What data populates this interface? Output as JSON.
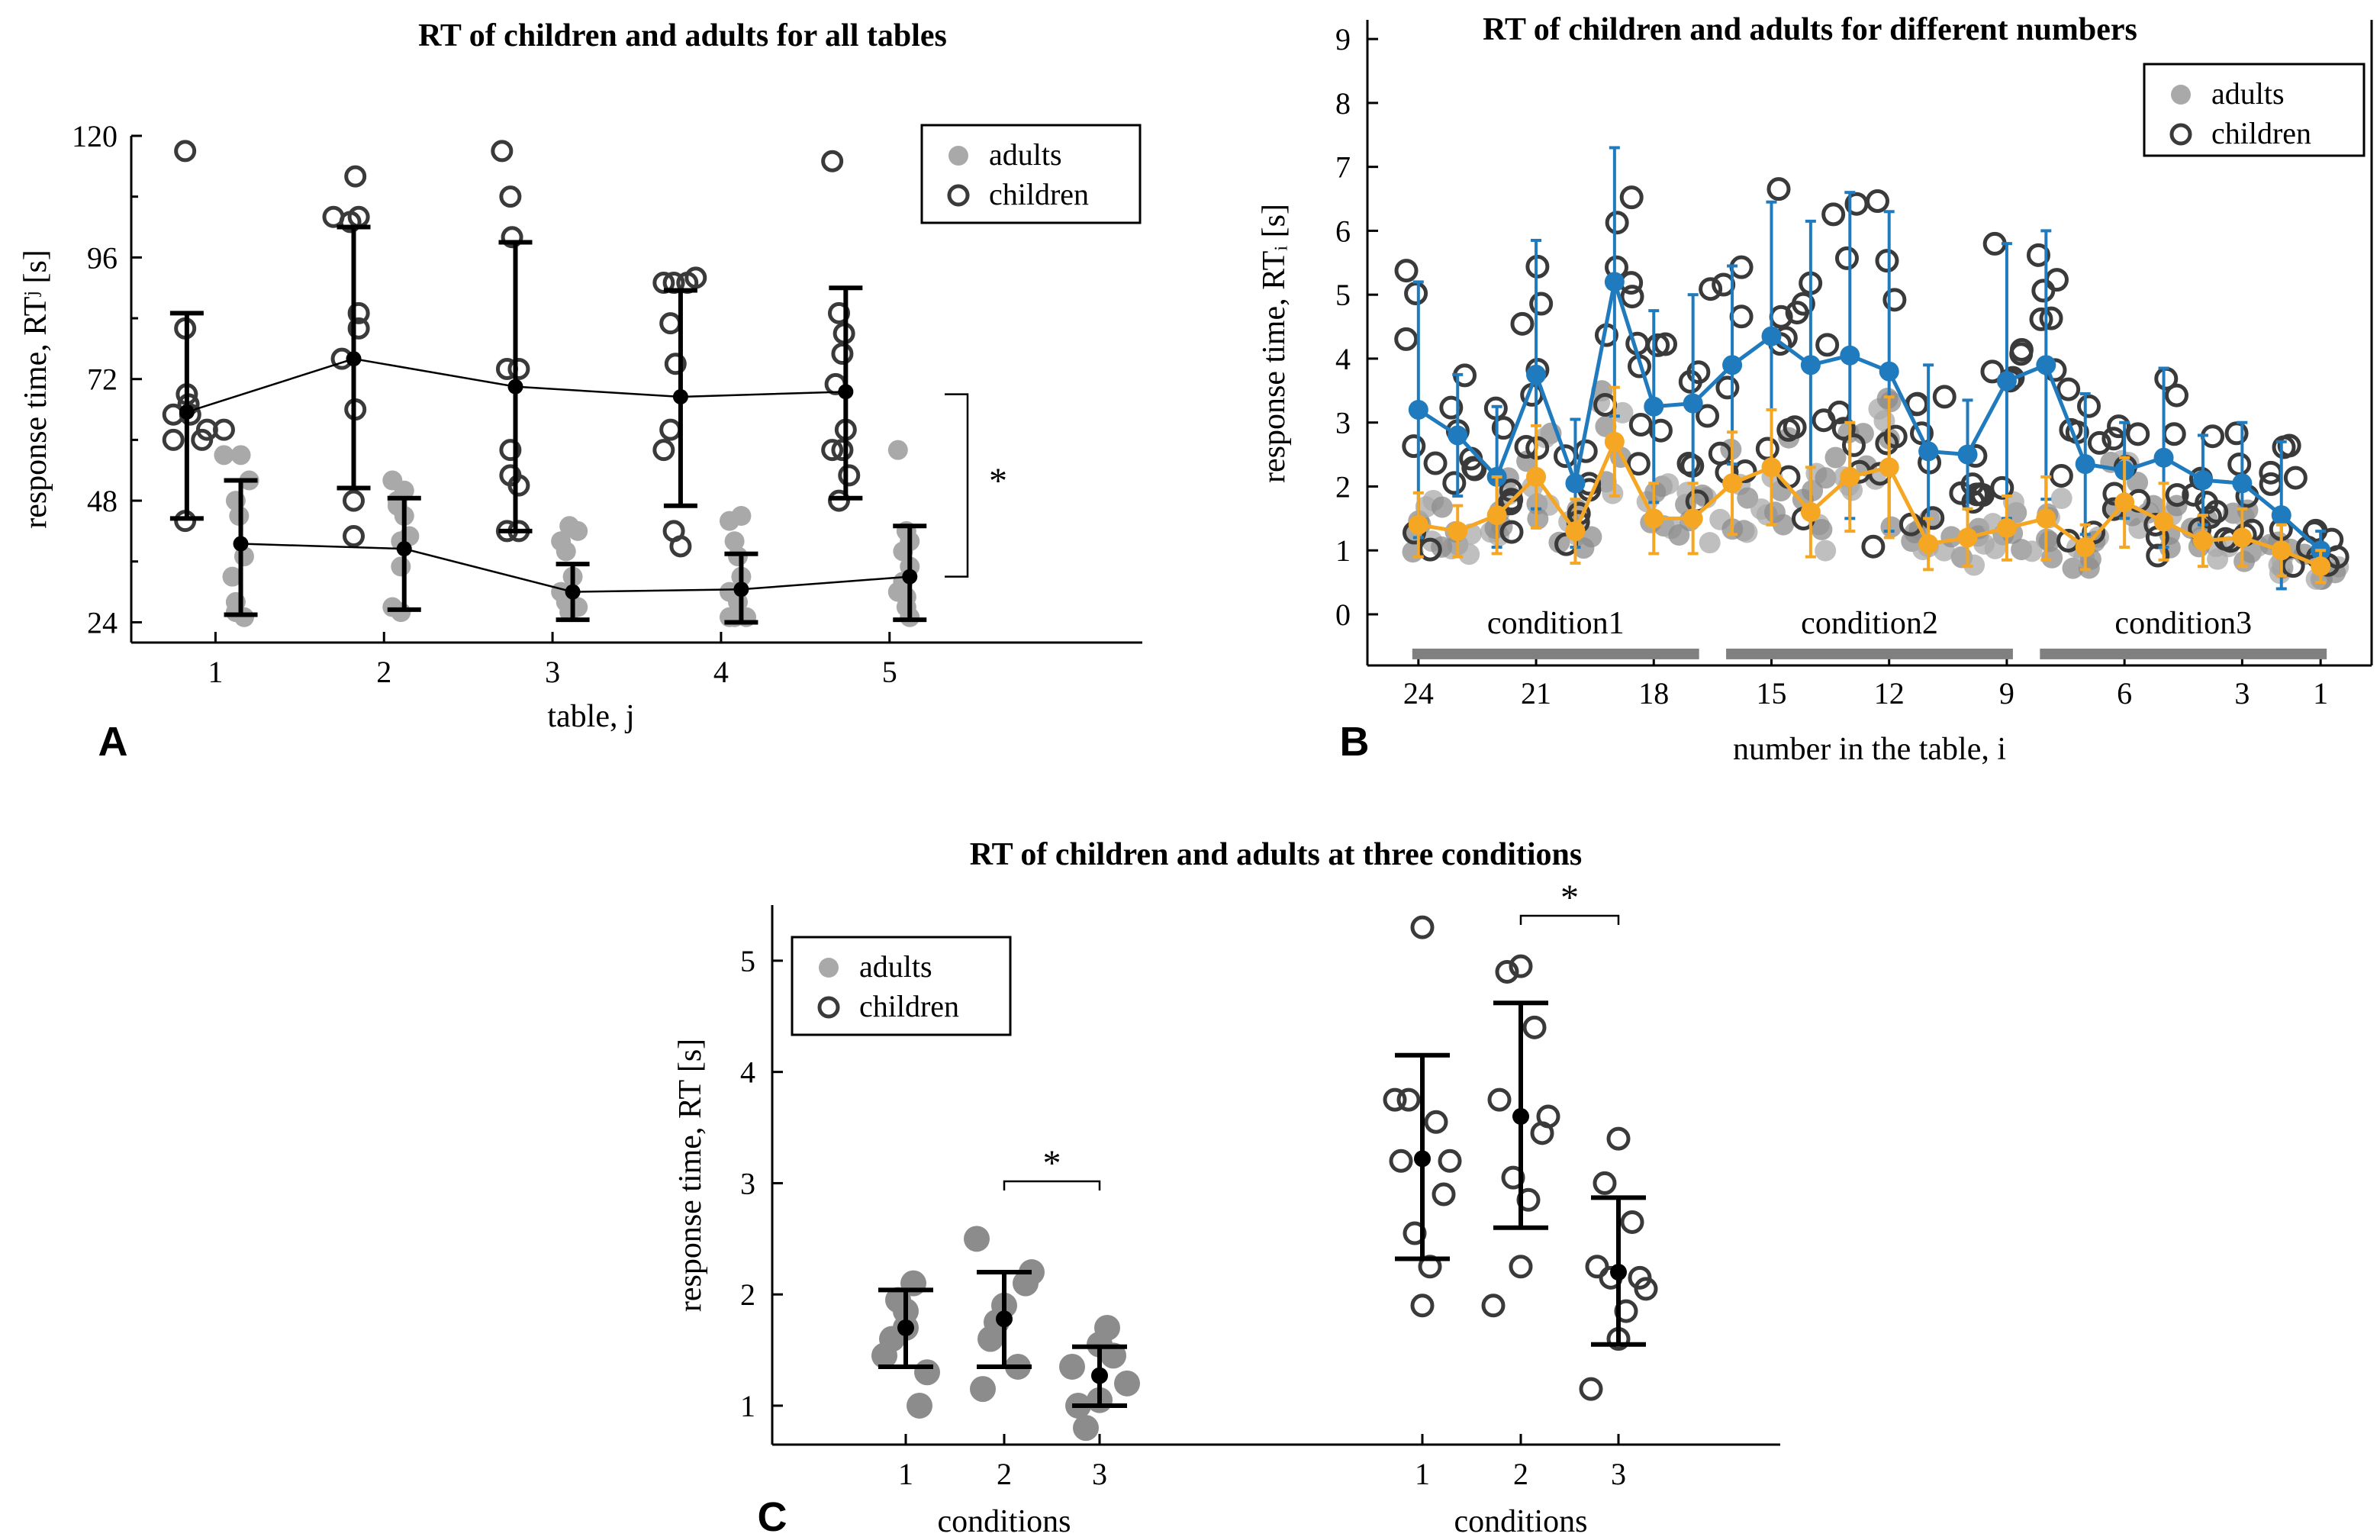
{
  "colors": {
    "adult": "#a9a9a9",
    "adult_dark": "#8c8c8c",
    "child": "#3a3a3a",
    "mean": "#000000",
    "blue": "#1f7bbd",
    "orange": "#f5a623",
    "condition_bar": "#808080"
  },
  "chart_data": [
    {
      "id": "A",
      "panel_label": "A",
      "type": "scatter",
      "title": "RT of children and adults for all tables",
      "xlabel": "table, j",
      "ylabel": "response time, RTʲ [s]",
      "xlim": [
        0.5,
        6.5
      ],
      "ylim": [
        20,
        120
      ],
      "x_ticks": [
        1,
        2,
        3,
        4,
        5
      ],
      "y_ticks": [
        24,
        48,
        72,
        96,
        120
      ],
      "legend": {
        "position": "top-right",
        "entries": [
          "adults",
          "children"
        ]
      },
      "significance": {
        "label": "*",
        "between": "children vs adults"
      },
      "series": [
        {
          "name": "children",
          "marker": "open-circle",
          "points": [
            [
              0.82,
              117
            ],
            [
              0.82,
              44
            ],
            [
              0.75,
              65
            ],
            [
              0.75,
              60
            ],
            [
              0.83,
              69
            ],
            [
              0.92,
              60
            ],
            [
              0.95,
              62
            ],
            [
              0.85,
              65
            ],
            [
              0.84,
              67
            ],
            [
              0.82,
              82
            ],
            [
              1.05,
              62
            ],
            [
              1.7,
              104
            ],
            [
              1.8,
              103
            ],
            [
              1.83,
              112
            ],
            [
              1.85,
              104
            ],
            [
              1.85,
              85
            ],
            [
              1.85,
              82
            ],
            [
              1.83,
              66
            ],
            [
              1.82,
              48
            ],
            [
              1.82,
              41
            ],
            [
              1.75,
              76
            ],
            [
              2.7,
              117
            ],
            [
              2.75,
              108
            ],
            [
              2.76,
              100
            ],
            [
              2.73,
              74
            ],
            [
              2.8,
              74
            ],
            [
              2.75,
              58
            ],
            [
              2.8,
              51
            ],
            [
              2.75,
              53
            ],
            [
              2.73,
              42
            ],
            [
              2.8,
              42
            ],
            [
              3.66,
              91
            ],
            [
              3.72,
              91
            ],
            [
              3.8,
              91
            ],
            [
              3.85,
              92
            ],
            [
              3.7,
              83
            ],
            [
              3.73,
              75
            ],
            [
              3.7,
              62
            ],
            [
              3.66,
              58
            ],
            [
              3.72,
              42
            ],
            [
              3.76,
              39
            ],
            [
              4.66,
              115
            ],
            [
              4.7,
              85
            ],
            [
              4.73,
              81
            ],
            [
              4.72,
              77
            ],
            [
              4.68,
              71
            ],
            [
              4.74,
              62
            ],
            [
              4.66,
              58
            ],
            [
              4.72,
              58
            ],
            [
              4.76,
              53
            ],
            [
              4.7,
              48
            ]
          ],
          "means": [
            65.5,
            76,
            70.5,
            68.5,
            69.5
          ],
          "mean_x": [
            0.83,
            1.82,
            2.78,
            3.76,
            4.74
          ],
          "sd_low": [
            44.5,
            50.5,
            42,
            47,
            48.5
          ],
          "sd_high": [
            85,
            102,
            99,
            89.5,
            90
          ]
        },
        {
          "name": "adults",
          "marker": "filled-circle",
          "points": [
            [
              1.05,
              57
            ],
            [
              1.15,
              57
            ],
            [
              1.12,
              48
            ],
            [
              1.14,
              45
            ],
            [
              1.17,
              37
            ],
            [
              1.12,
              28
            ],
            [
              1.12,
              26
            ],
            [
              1.17,
              25
            ],
            [
              1.1,
              33
            ],
            [
              1.2,
              52
            ],
            [
              2.05,
              52
            ],
            [
              2.08,
              48
            ],
            [
              2.12,
              45
            ],
            [
              2.1,
              40
            ],
            [
              2.1,
              35
            ],
            [
              2.05,
              27
            ],
            [
              2.1,
              26
            ],
            [
              2.15,
              41
            ],
            [
              2.08,
              47
            ],
            [
              2.12,
              50
            ],
            [
              3.1,
              43
            ],
            [
              3.05,
              40
            ],
            [
              3.15,
              42
            ],
            [
              3.08,
              38
            ],
            [
              3.12,
              33
            ],
            [
              3.05,
              30
            ],
            [
              3.15,
              27
            ],
            [
              3.1,
              26
            ],
            [
              3.08,
              28
            ],
            [
              3.12,
              27
            ],
            [
              4.05,
              44
            ],
            [
              4.12,
              45
            ],
            [
              4.08,
              40
            ],
            [
              4.1,
              37
            ],
            [
              4.12,
              33
            ],
            [
              4.05,
              30
            ],
            [
              4.15,
              25
            ],
            [
              4.08,
              25
            ],
            [
              4.1,
              28
            ],
            [
              4.05,
              25
            ],
            [
              5.05,
              58
            ],
            [
              5.1,
              42
            ],
            [
              5.12,
              40
            ],
            [
              5.08,
              38
            ],
            [
              5.12,
              35
            ],
            [
              5.05,
              30
            ],
            [
              5.1,
              27
            ],
            [
              5.12,
              25
            ],
            [
              5.08,
              32
            ],
            [
              5.1,
              29
            ]
          ],
          "means": [
            39.5,
            38.5,
            30,
            30.5,
            33
          ],
          "mean_x": [
            1.15,
            2.12,
            3.12,
            4.12,
            5.12
          ],
          "sd_low": [
            25.5,
            26.5,
            24.5,
            24,
            24.5
          ],
          "sd_high": [
            52,
            48.5,
            35.5,
            37.5,
            43
          ]
        }
      ]
    },
    {
      "id": "B",
      "panel_label": "B",
      "type": "line",
      "title": "RT of children and adults for different numbers",
      "xlabel": "number in the table, i",
      "ylabel": "response time, RTᵢ [s]",
      "xlim": [
        25.3,
        -0.3
      ],
      "ylim": [
        -0.8,
        9.3
      ],
      "x_ticks": [
        24,
        21,
        18,
        15,
        12,
        9,
        6,
        3,
        1
      ],
      "y_ticks": [
        0,
        1,
        2,
        3,
        4,
        5,
        6,
        7,
        8,
        9
      ],
      "legend": {
        "position": "top-right",
        "entries": [
          "adults",
          "children"
        ]
      },
      "conditions": [
        {
          "label": "condition1",
          "from": 24,
          "to": 17
        },
        {
          "label": "condition2",
          "from": 16,
          "to": 9
        },
        {
          "label": "condition3",
          "from": 8,
          "to": 1
        }
      ],
      "children_mean": [
        3.2,
        2.8,
        2.15,
        3.75,
        2.05,
        5.2,
        3.25,
        3.3,
        3.9,
        4.35,
        3.9,
        4.05,
        3.8,
        2.55,
        2.5,
        3.65,
        3.9,
        2.35,
        2.25,
        2.45,
        2.1,
        2.05,
        1.55,
        1.0
      ],
      "children_sd": [
        2.0,
        0.95,
        1.1,
        2.1,
        1.0,
        2.1,
        1.5,
        1.7,
        1.55,
        2.1,
        2.25,
        2.55,
        2.5,
        1.35,
        0.85,
        2.15,
        2.1,
        1.1,
        0.75,
        1.4,
        0.7,
        0.95,
        1.15,
        0.3
      ],
      "adults_mean": [
        1.4,
        1.3,
        1.55,
        2.15,
        1.3,
        2.7,
        1.5,
        1.5,
        2.05,
        2.3,
        1.6,
        2.15,
        2.3,
        1.1,
        1.2,
        1.35,
        1.5,
        1.05,
        1.75,
        1.45,
        1.15,
        1.2,
        1.0,
        0.75
      ],
      "adults_sd": [
        0.5,
        0.4,
        0.6,
        0.8,
        0.5,
        0.85,
        0.55,
        0.55,
        0.8,
        0.9,
        0.7,
        0.85,
        1.1,
        0.4,
        0.45,
        0.5,
        0.65,
        0.35,
        0.7,
        0.6,
        0.4,
        0.45,
        0.4,
        0.25
      ]
    },
    {
      "id": "C",
      "panel_label": "C",
      "type": "scatter",
      "title": "RT of children and adults at three conditions",
      "xlabel": "conditions",
      "ylabel": "response time, RT [s]",
      "ylim": [
        0.65,
        5.5
      ],
      "y_ticks": [
        1,
        2,
        3,
        4,
        5
      ],
      "x_ticks": [
        1,
        2,
        3
      ],
      "legend": {
        "position": "top-left",
        "entries": [
          "adults",
          "children"
        ]
      },
      "groups": [
        {
          "name": "adults",
          "marker": "filled-circle",
          "points": [
            [
              1,
              1.85
            ],
            [
              1,
              1.6
            ],
            [
              1,
              1.0
            ],
            [
              1,
              1.45
            ],
            [
              1,
              1.3
            ],
            [
              1,
              1.95
            ],
            [
              1,
              2.1
            ],
            [
              1,
              1.7
            ],
            [
              2,
              2.5
            ],
            [
              2,
              2.2
            ],
            [
              2,
              1.9
            ],
            [
              2,
              1.6
            ],
            [
              2,
              1.35
            ],
            [
              2,
              1.15
            ],
            [
              2,
              2.1
            ],
            [
              2,
              1.75
            ],
            [
              3,
              1.7
            ],
            [
              3,
              1.55
            ],
            [
              3,
              1.35
            ],
            [
              3,
              1.2
            ],
            [
              3,
              1.05
            ],
            [
              3,
              0.8
            ],
            [
              3,
              1.45
            ],
            [
              3,
              1.0
            ]
          ],
          "means": [
            1.7,
            1.78,
            1.27
          ],
          "sd_low": [
            1.35,
            1.35,
            1.0
          ],
          "sd_high": [
            2.04,
            2.2,
            1.53
          ],
          "significance": {
            "label": "*",
            "between": [
              2,
              3
            ]
          }
        },
        {
          "name": "children",
          "marker": "open-circle",
          "points": [
            [
              1,
              5.3
            ],
            [
              1,
              3.75
            ],
            [
              1,
              3.55
            ],
            [
              1,
              3.2
            ],
            [
              1,
              2.9
            ],
            [
              1,
              2.55
            ],
            [
              1,
              2.25
            ],
            [
              1,
              1.9
            ],
            [
              1,
              3.75
            ],
            [
              1,
              3.2
            ],
            [
              2,
              4.95
            ],
            [
              2,
              4.9
            ],
            [
              2,
              4.4
            ],
            [
              2,
              3.75
            ],
            [
              2,
              3.45
            ],
            [
              2,
              3.05
            ],
            [
              2,
              2.85
            ],
            [
              2,
              2.25
            ],
            [
              2,
              1.9
            ],
            [
              2,
              3.6
            ],
            [
              3,
              3.4
            ],
            [
              3,
              3.0
            ],
            [
              3,
              2.65
            ],
            [
              3,
              2.25
            ],
            [
              3,
              2.15
            ],
            [
              3,
              2.15
            ],
            [
              3,
              1.85
            ],
            [
              3,
              1.6
            ],
            [
              3,
              1.15
            ],
            [
              3,
              2.05
            ]
          ],
          "means": [
            3.22,
            3.6,
            2.2
          ],
          "sd_low": [
            2.32,
            2.6,
            1.55
          ],
          "sd_high": [
            4.15,
            4.62,
            2.87
          ],
          "significance": {
            "label": "*",
            "between": [
              2,
              3
            ]
          }
        }
      ]
    }
  ]
}
